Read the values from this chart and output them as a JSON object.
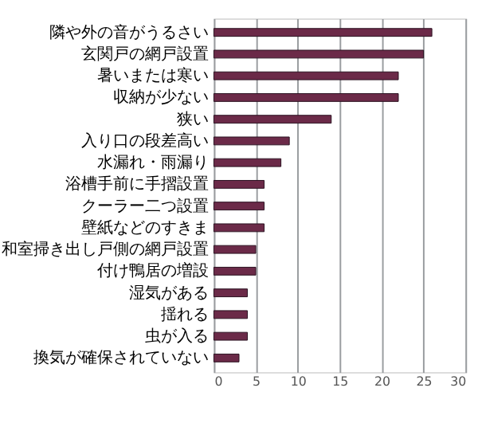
{
  "chart_data": {
    "type": "bar",
    "orientation": "horizontal",
    "categories": [
      "隣や外の音がうるさい",
      "玄関戸の網戸設置",
      "暑いまたは寒い",
      "収納が少ない",
      "狭い",
      "入り口の段差高い",
      "水漏れ・雨漏り",
      "浴槽手前に手摺設置",
      "クーラー二つ設置",
      "壁紙などのすきま",
      "和室掃き出し戸側の網戸設置",
      "付け鴨居の増設",
      "湿気がある",
      "揺れる",
      "虫が入る",
      "換気が確保されていない"
    ],
    "values": [
      26,
      25,
      22,
      22,
      14,
      9,
      8,
      6,
      6,
      6,
      5,
      5,
      4,
      4,
      4,
      3
    ],
    "color": "#6b2a48",
    "xlim": [
      0,
      30
    ],
    "xticks": [
      0,
      5,
      10,
      15,
      20,
      25,
      30
    ],
    "grid": "x"
  }
}
